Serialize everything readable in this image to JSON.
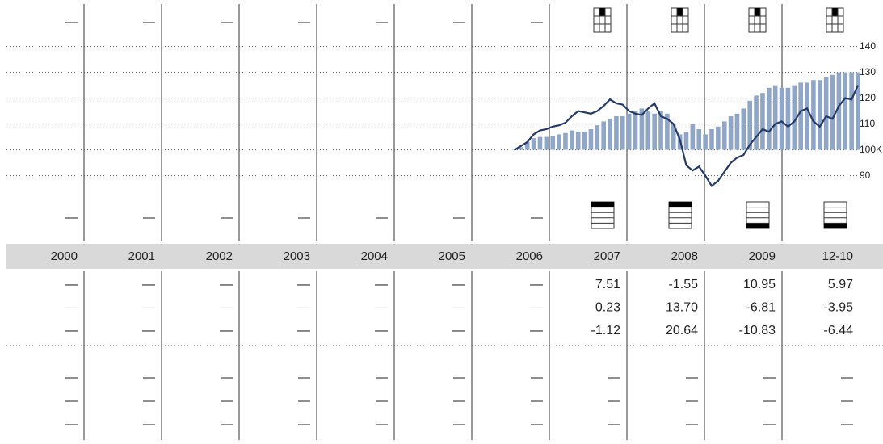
{
  "chart_data": {
    "type": "bar_line",
    "ylim": [
      83,
      158
    ],
    "yticks": [
      140,
      130,
      120,
      110,
      {
        "value": 100,
        "label": "100K"
      },
      90
    ],
    "grid": true,
    "series": [
      {
        "type": "bar",
        "color": "#8fa6c8",
        "values": [
          100.5,
          101,
          103,
          104.5,
          105,
          105,
          105.5,
          106,
          106.5,
          107.5,
          107,
          107,
          108,
          109.5,
          111,
          112,
          113,
          113,
          114,
          115,
          116,
          115,
          114,
          115,
          114,
          110,
          106,
          107,
          110,
          108,
          106,
          108,
          109,
          111,
          113,
          114,
          116,
          119,
          121,
          122,
          124,
          125,
          124,
          124,
          125,
          126,
          126,
          127,
          127,
          128,
          129,
          130,
          130,
          130,
          130
        ]
      },
      {
        "type": "line",
        "color": "#243a6b",
        "values": [
          100,
          101.5,
          103,
          106,
          107.5,
          108,
          109,
          109.5,
          110.5,
          113,
          115,
          114.5,
          114,
          115,
          117,
          119.5,
          118,
          117.5,
          115,
          114,
          113.5,
          116,
          118,
          113,
          112,
          110,
          104,
          94,
          92,
          93.5,
          90,
          86,
          88,
          91.5,
          95,
          97,
          98,
          102,
          105,
          108,
          107,
          110,
          111,
          109,
          111,
          115,
          116,
          111,
          109,
          113,
          112,
          117,
          120,
          119.5,
          125
        ]
      }
    ]
  },
  "table": {
    "columns": [
      "2000",
      "2001",
      "2002",
      "2003",
      "2004",
      "2005",
      "2006",
      "2007",
      "2008",
      "2009",
      "12-10"
    ],
    "top_row": [
      "—",
      "—",
      "—",
      "—",
      "—",
      "—",
      "—"
    ],
    "icon_row": [
      "—",
      "—",
      "—",
      "—",
      "—",
      "—",
      "—"
    ],
    "rows": [
      [
        "—",
        "—",
        "—",
        "—",
        "—",
        "—",
        "—",
        "7.51",
        "-1.55",
        "10.95",
        "5.97"
      ],
      [
        "—",
        "—",
        "—",
        "—",
        "—",
        "—",
        "—",
        "0.23",
        "13.70",
        "-6.81",
        "-3.95"
      ],
      [
        "—",
        "—",
        "—",
        "—",
        "—",
        "—",
        "—",
        "-1.12",
        "20.64",
        "-10.83",
        "-6.44"
      ]
    ],
    "lower_rows": [
      [
        "—",
        "—",
        "—",
        "—",
        "—",
        "—",
        "—",
        "—",
        "—",
        "—",
        "—"
      ],
      [
        "—",
        "—",
        "—",
        "—",
        "—",
        "—",
        "—",
        "—",
        "—",
        "—",
        "—"
      ],
      [
        "—",
        "—",
        "—",
        "—",
        "—",
        "—",
        "—",
        "—",
        "—",
        "—",
        "—"
      ]
    ]
  }
}
